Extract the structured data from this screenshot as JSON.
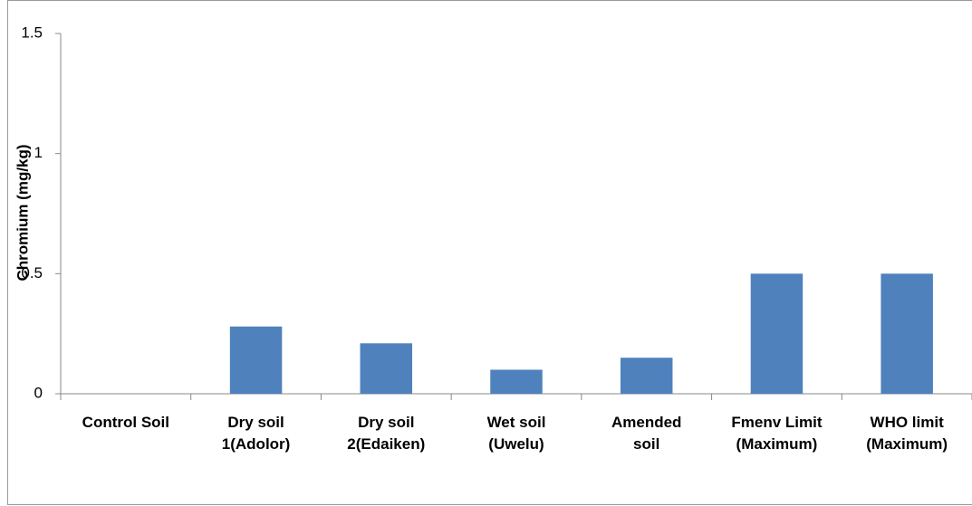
{
  "chart_data": {
    "type": "bar",
    "y_axis_label": "Chromium (mg/kg)",
    "categories": [
      "Control Soil",
      "Dry soil\n1(Adolor)",
      "Dry soil\n2(Edaiken)",
      "Wet soil\n(Uwelu)",
      "Amended\nsoil",
      "Fmenv Limit\n(Maximum)",
      "WHO limit\n(Maximum)"
    ],
    "values": [
      0,
      0.28,
      0.21,
      0.1,
      0.15,
      0.5,
      0.5
    ],
    "color": "#4f81bd",
    "ylim": [
      0,
      1.5
    ],
    "yticks": [
      0,
      0.5,
      1,
      1.5
    ],
    "grid": false
  }
}
